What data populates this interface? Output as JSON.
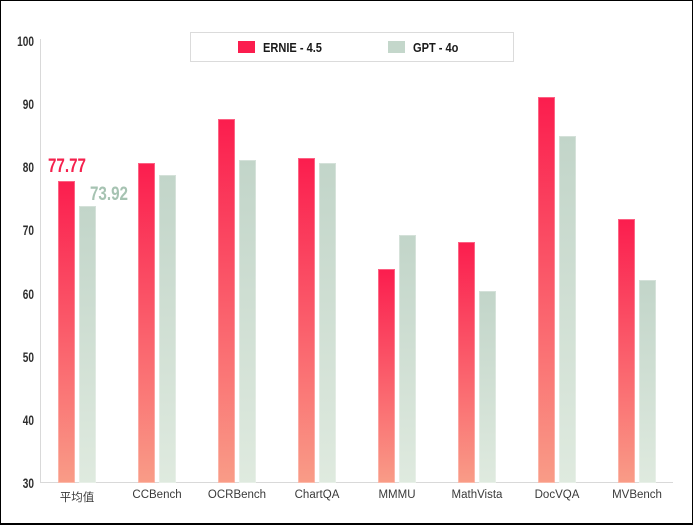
{
  "chart_data": {
    "type": "bar",
    "title": "",
    "categories": [
      "平均值",
      "CCBench",
      "OCRBench",
      "ChartQA",
      "MMMU",
      "MathVista",
      "DocVQA",
      "MVBench"
    ],
    "series": [
      {
        "name": "ERNIE - 4.5",
        "color_top": "#FB1D4E",
        "color_bottom": "#F99C87",
        "values": [
          77.77,
          80.7,
          87.7,
          81.5,
          63.9,
          68.2,
          91.1,
          71.8
        ]
      },
      {
        "name": "GPT - 4o",
        "color_top": "#C2D5C9",
        "color_bottom": "#DFEADF",
        "values": [
          73.92,
          78.8,
          81.1,
          80.6,
          69.2,
          60.4,
          85.0,
          62.1
        ]
      }
    ],
    "xlabel": "",
    "ylabel": "",
    "ylim": [
      30,
      100
    ],
    "yticks": [
      100,
      90,
      80,
      70,
      60,
      50,
      40,
      30
    ],
    "grid": false,
    "legend_position": "top-center",
    "annotations": [
      {
        "text": "77.77",
        "series": 0,
        "category": 0,
        "color": "#F5214D"
      },
      {
        "text": "73.92",
        "series": 1,
        "category": 0,
        "color": "#A6C3B2"
      }
    ],
    "axis_color": "#D9D9D9",
    "tick_text_color": "#2e2e2e",
    "category_text_color": "#3A3A3A"
  }
}
